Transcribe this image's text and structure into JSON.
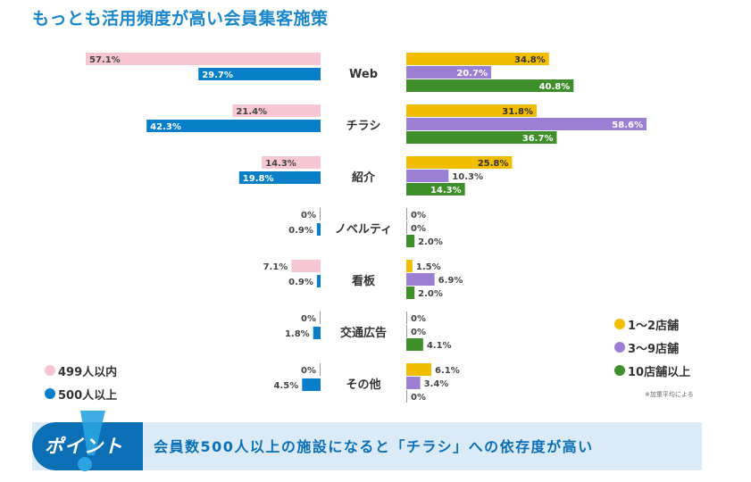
{
  "page": {
    "title": "もっとも活用頻度が高い会員集客施策",
    "point_label": "ポイント",
    "point_text": "会員数500人以上の施設になると「チラシ」への依存度が高い",
    "note": "※加重平均による"
  },
  "colors": {
    "pink": "#f6c6d2",
    "blue": "#0a7fc9",
    "yellow": "#f2bd00",
    "purple": "#9b7fd4",
    "green": "#3e8e2a",
    "title": "#1a86cc"
  },
  "chart_data": {
    "type": "bar",
    "orientation": "horizontal-butterfly",
    "unit": "%",
    "categories": [
      "Web",
      "チラシ",
      "紹介",
      "ノベルティ",
      "看板",
      "交通広告",
      "その他"
    ],
    "left_series": [
      {
        "name": "499人以内",
        "color": "#f6c6d2",
        "values": [
          57.1,
          21.4,
          14.3,
          0,
          7.1,
          0,
          0
        ],
        "labels": [
          "57.1%",
          "21.4%",
          "14.3%",
          "0%",
          "7.1%",
          "0%",
          "0%"
        ]
      },
      {
        "name": "500人以上",
        "color": "#0a7fc9",
        "values": [
          29.7,
          42.3,
          19.8,
          0.9,
          0.9,
          1.8,
          4.5
        ],
        "labels": [
          "29.7%",
          "42.3%",
          "19.8%",
          "0.9%",
          "0.9%",
          "1.8%",
          "4.5%"
        ]
      }
    ],
    "right_series": [
      {
        "name": "1〜2店舗",
        "color": "#f2bd00",
        "values": [
          34.8,
          31.8,
          25.8,
          0,
          1.5,
          0,
          6.1
        ],
        "labels": [
          "34.8%",
          "31.8%",
          "25.8%",
          "0%",
          "1.5%",
          "0%",
          "6.1%"
        ]
      },
      {
        "name": "3〜9店舗",
        "color": "#9b7fd4",
        "values": [
          20.7,
          58.6,
          10.3,
          0,
          6.9,
          0,
          3.4
        ],
        "labels": [
          "20.7%",
          "58.6%",
          "10.3%",
          "0%",
          "6.9%",
          "0%",
          "3.4%"
        ]
      },
      {
        "name": "10店舗以上",
        "color": "#3e8e2a",
        "values": [
          40.8,
          36.7,
          14.3,
          2.0,
          2.0,
          4.1,
          0
        ],
        "labels": [
          "40.8%",
          "36.7%",
          "14.3%",
          "2.0%",
          "2.0%",
          "4.1%",
          "0%"
        ]
      }
    ],
    "xlim": [
      0,
      60
    ],
    "grid": false,
    "legend_left_position": "bottom-left",
    "legend_right_position": "bottom-right"
  }
}
